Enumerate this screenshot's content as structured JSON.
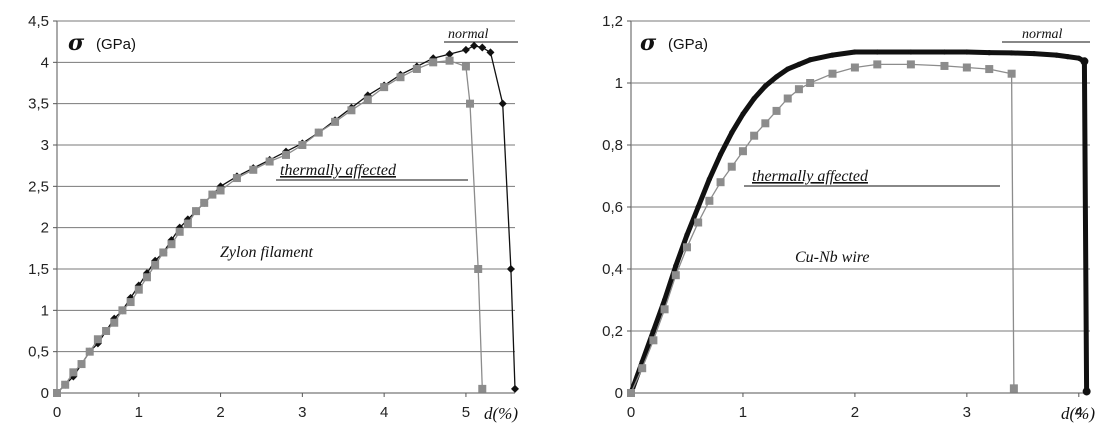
{
  "chart_data": [
    {
      "type": "line",
      "ylabel": "σ",
      "yunit": "(GPa)",
      "xlabel": "d(%)",
      "xlim": [
        0,
        5.6
      ],
      "ylim": [
        0,
        4.5
      ],
      "xticks": [
        0,
        1,
        2,
        3,
        4,
        5
      ],
      "xtick_labels": [
        "0",
        "1",
        "2",
        "3",
        "4",
        "5"
      ],
      "yticks": [
        0,
        0.5,
        1,
        1.5,
        2,
        2.5,
        3,
        3.5,
        4,
        4.5
      ],
      "ytick_labels": [
        "0",
        "0,5",
        "1",
        "1,5",
        "2",
        "2,5",
        "3",
        "3,5",
        "4",
        "4,5"
      ],
      "grid": true,
      "annotations": {
        "normal": "normal",
        "thermal": "thermally affected",
        "material": "Zylon filament"
      },
      "series": [
        {
          "name": "normal",
          "color": "#111111",
          "marker": "diamond",
          "x": [
            0,
            0.1,
            0.2,
            0.3,
            0.4,
            0.5,
            0.6,
            0.7,
            0.8,
            0.9,
            1.0,
            1.1,
            1.2,
            1.3,
            1.4,
            1.5,
            1.6,
            1.7,
            1.8,
            1.9,
            2.0,
            2.2,
            2.4,
            2.6,
            2.8,
            3.0,
            3.2,
            3.4,
            3.6,
            3.8,
            4.0,
            4.2,
            4.4,
            4.6,
            4.8,
            5.0,
            5.1,
            5.2,
            5.3,
            5.45,
            5.55,
            5.6
          ],
          "y": [
            0,
            0.1,
            0.2,
            0.35,
            0.5,
            0.6,
            0.75,
            0.9,
            1.0,
            1.15,
            1.3,
            1.45,
            1.6,
            1.7,
            1.85,
            2.0,
            2.1,
            2.2,
            2.3,
            2.4,
            2.5,
            2.62,
            2.72,
            2.82,
            2.92,
            3.02,
            3.15,
            3.3,
            3.45,
            3.6,
            3.72,
            3.85,
            3.95,
            4.05,
            4.1,
            4.15,
            4.2,
            4.18,
            4.12,
            3.5,
            1.5,
            0.05
          ]
        },
        {
          "name": "thermally affected",
          "color": "#8c8c8c",
          "marker": "square",
          "x": [
            0,
            0.1,
            0.2,
            0.3,
            0.4,
            0.5,
            0.6,
            0.7,
            0.8,
            0.9,
            1.0,
            1.1,
            1.2,
            1.3,
            1.4,
            1.5,
            1.6,
            1.7,
            1.8,
            1.9,
            2.0,
            2.2,
            2.4,
            2.6,
            2.8,
            3.0,
            3.2,
            3.4,
            3.6,
            3.8,
            4.0,
            4.2,
            4.4,
            4.6,
            4.8,
            5.0,
            5.05,
            5.15,
            5.2
          ],
          "y": [
            0,
            0.1,
            0.25,
            0.35,
            0.5,
            0.65,
            0.75,
            0.85,
            1.0,
            1.1,
            1.25,
            1.4,
            1.55,
            1.7,
            1.8,
            1.95,
            2.05,
            2.2,
            2.3,
            2.4,
            2.45,
            2.6,
            2.7,
            2.8,
            2.88,
            3.0,
            3.15,
            3.28,
            3.42,
            3.55,
            3.7,
            3.82,
            3.92,
            4.0,
            4.02,
            3.95,
            3.5,
            1.5,
            0.05
          ]
        }
      ]
    },
    {
      "type": "line",
      "ylabel": "σ",
      "yunit": "(GPa)",
      "xlabel": "d(%)",
      "xlim": [
        0,
        4.1
      ],
      "ylim": [
        0,
        1.2
      ],
      "xticks": [
        0,
        1,
        2,
        3,
        4
      ],
      "xtick_labels": [
        "0",
        "1",
        "2",
        "3",
        "4"
      ],
      "yticks": [
        0,
        0.2,
        0.4,
        0.6,
        0.8,
        1,
        1.2
      ],
      "ytick_labels": [
        "0",
        "0,2",
        "0,4",
        "0,6",
        "0,8",
        "1",
        "1,2"
      ],
      "grid": true,
      "annotations": {
        "normal": "normal",
        "thermal": "thermally affected",
        "material": "Cu-Nb wire"
      },
      "series": [
        {
          "name": "normal",
          "color": "#111111",
          "marker": "line",
          "x": [
            0,
            0.1,
            0.2,
            0.3,
            0.4,
            0.5,
            0.6,
            0.7,
            0.8,
            0.9,
            1.0,
            1.1,
            1.2,
            1.3,
            1.4,
            1.5,
            1.6,
            1.8,
            2.0,
            2.2,
            2.5,
            2.8,
            3.0,
            3.2,
            3.4,
            3.6,
            3.8,
            3.9,
            4.0,
            4.05,
            4.07
          ],
          "y": [
            0,
            0.1,
            0.2,
            0.3,
            0.41,
            0.51,
            0.6,
            0.69,
            0.77,
            0.84,
            0.9,
            0.95,
            0.99,
            1.02,
            1.045,
            1.06,
            1.075,
            1.09,
            1.1,
            1.1,
            1.1,
            1.1,
            1.1,
            1.098,
            1.097,
            1.095,
            1.09,
            1.085,
            1.08,
            1.07,
            0.005
          ]
        },
        {
          "name": "thermally affected",
          "color": "#8c8c8c",
          "marker": "square",
          "x": [
            0,
            0.1,
            0.2,
            0.3,
            0.4,
            0.5,
            0.6,
            0.7,
            0.8,
            0.9,
            1.0,
            1.1,
            1.2,
            1.3,
            1.4,
            1.5,
            1.6,
            1.8,
            2.0,
            2.2,
            2.5,
            2.8,
            3.0,
            3.2,
            3.4,
            3.42
          ],
          "y": [
            0,
            0.08,
            0.17,
            0.27,
            0.38,
            0.47,
            0.55,
            0.62,
            0.68,
            0.73,
            0.78,
            0.83,
            0.87,
            0.91,
            0.95,
            0.98,
            1.0,
            1.03,
            1.05,
            1.06,
            1.06,
            1.055,
            1.05,
            1.045,
            1.03,
            0.015
          ]
        }
      ]
    }
  ]
}
